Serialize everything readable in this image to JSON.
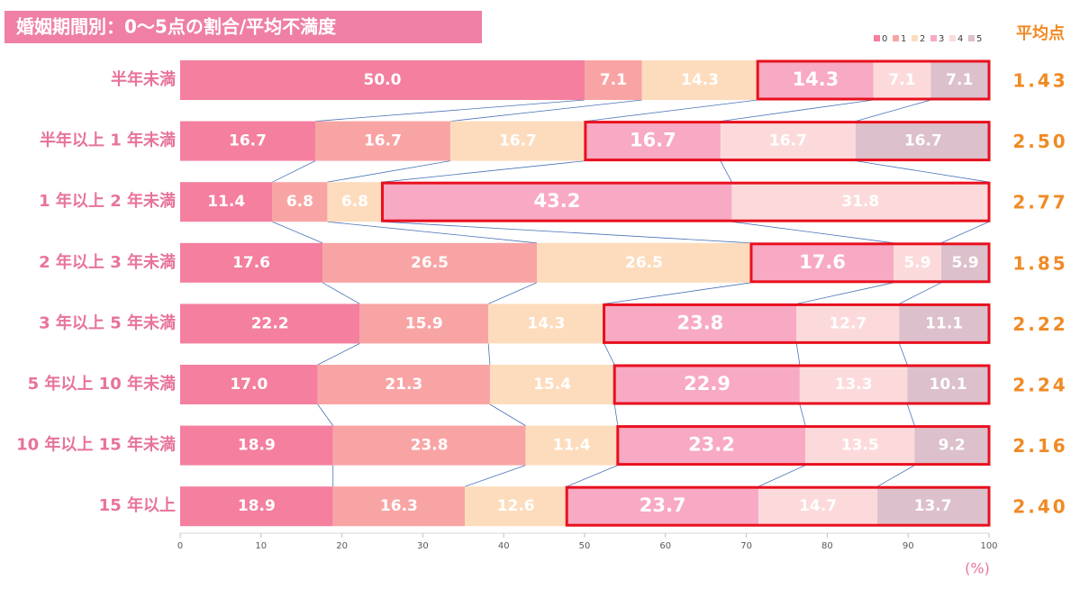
{
  "chart_data": {
    "type": "stacked-bar-horizontal",
    "title": "婚姻期間別：0～5点の割合/平均不満度",
    "categories": [
      "半年未満",
      "半年以上 1 年未満",
      "1 年以上 2 年未満",
      "2 年以上 3 年未満",
      "3 年以上 5 年未満",
      "5 年以上 10 年未満",
      "10 年以上 15 年未満",
      "15 年以上"
    ],
    "series": [
      {
        "name": "0",
        "color": "#f47f9e",
        "values": [
          50.0,
          16.7,
          11.4,
          17.6,
          22.2,
          17.0,
          18.9,
          18.9
        ],
        "value_labels": [
          "50.0",
          "16.7",
          "11.4",
          "17.6",
          "22.2",
          "17.0",
          "18.9",
          "18.9"
        ]
      },
      {
        "name": "1",
        "color": "#f9a4a4",
        "values": [
          7.1,
          16.7,
          6.8,
          26.5,
          15.9,
          21.3,
          23.8,
          16.3
        ],
        "value_labels": [
          "7.1",
          "16.7",
          "6.8",
          "26.5",
          "15.9",
          "21.3",
          "23.8",
          "16.3"
        ]
      },
      {
        "name": "2",
        "color": "#fddcbd",
        "values": [
          14.3,
          16.7,
          6.8,
          26.5,
          14.3,
          15.4,
          11.4,
          12.6
        ],
        "value_labels": [
          "14.3",
          "16.7",
          "6.8",
          "26.5",
          "14.3",
          "15.4",
          "11.4",
          "12.6"
        ]
      },
      {
        "name": "3",
        "color": "#f8a9c3",
        "values": [
          14.3,
          16.7,
          43.2,
          17.6,
          23.8,
          22.9,
          23.2,
          23.7
        ],
        "value_labels": [
          "14.3",
          "16.7",
          "43.2",
          "17.6",
          "23.8",
          "22.9",
          "23.2",
          "23.7"
        ]
      },
      {
        "name": "4",
        "color": "#fcdadb",
        "values": [
          7.1,
          16.7,
          31.8,
          5.9,
          12.7,
          13.3,
          13.5,
          14.7
        ],
        "value_labels": [
          "7.1",
          "16.7",
          "31.8",
          "5.9",
          "12.7",
          "13.3",
          "13.5",
          "14.7"
        ]
      },
      {
        "name": "5",
        "color": "#dcc0cb",
        "values": [
          7.1,
          16.7,
          0,
          5.9,
          11.1,
          10.1,
          9.2,
          13.7
        ],
        "value_labels": [
          "7.1",
          "16.7",
          null,
          "5.9",
          "11.1",
          "10.1",
          "9.2",
          "13.7"
        ]
      }
    ],
    "average_title": "平均点",
    "average_values": [
      1.43,
      2.5,
      2.77,
      1.85,
      2.22,
      2.24,
      2.16,
      2.4
    ],
    "average_labels": [
      "1.43",
      "2.50",
      "2.77",
      "1.85",
      "2.22",
      "2.24",
      "2.16",
      "2.40"
    ],
    "xlim": [
      0,
      100
    ],
    "xticks": [
      0,
      10,
      20,
      30,
      40,
      50,
      60,
      70,
      80,
      90,
      100
    ],
    "x_unit": "(%)"
  }
}
